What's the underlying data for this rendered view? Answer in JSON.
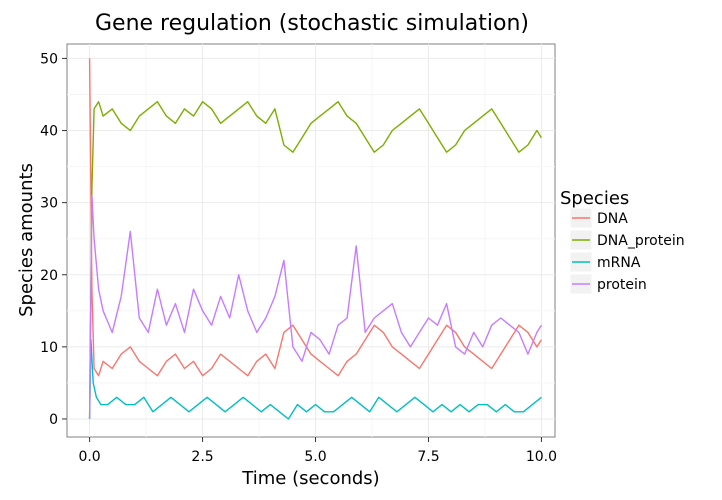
{
  "chart_data": {
    "type": "line",
    "title": "Gene regulation (stochastic simulation)",
    "xlabel": "Time (seconds)",
    "ylabel": "Species amounts",
    "xlim": [
      -0.5,
      10.3
    ],
    "ylim": [
      -2.5,
      52
    ],
    "xticks": [
      0.0,
      2.5,
      5.0,
      7.5,
      10.0
    ],
    "xtick_labels": [
      "0.0",
      "2.5",
      "5.0",
      "7.5",
      "10.0"
    ],
    "yticks": [
      0,
      10,
      20,
      30,
      40,
      50
    ],
    "ytick_labels": [
      "0",
      "10",
      "20",
      "30",
      "40",
      "50"
    ],
    "grid": true,
    "legend": {
      "title": "Species",
      "position": "right"
    },
    "series": [
      {
        "name": "DNA",
        "color": "#F8766D",
        "x": [
          0.0,
          0.05,
          0.1,
          0.2,
          0.3,
          0.5,
          0.7,
          0.9,
          1.1,
          1.3,
          1.5,
          1.7,
          1.9,
          2.1,
          2.3,
          2.5,
          2.7,
          2.9,
          3.1,
          3.3,
          3.5,
          3.7,
          3.9,
          4.1,
          4.3,
          4.5,
          4.7,
          4.9,
          5.1,
          5.3,
          5.5,
          5.7,
          5.9,
          6.1,
          6.3,
          6.5,
          6.7,
          6.9,
          7.1,
          7.3,
          7.5,
          7.7,
          7.9,
          8.1,
          8.3,
          8.5,
          8.7,
          8.9,
          9.1,
          9.3,
          9.5,
          9.7,
          9.9,
          10.0
        ],
        "y": [
          50,
          18,
          7,
          6,
          8,
          7,
          9,
          10,
          8,
          7,
          6,
          8,
          9,
          7,
          8,
          6,
          7,
          9,
          8,
          7,
          6,
          8,
          9,
          7,
          12,
          13,
          11,
          9,
          8,
          7,
          6,
          8,
          9,
          11,
          13,
          12,
          10,
          9,
          8,
          7,
          9,
          11,
          13,
          12,
          10,
          9,
          8,
          7,
          9,
          11,
          13,
          12,
          10,
          11
        ]
      },
      {
        "name": "DNA_protein",
        "color": "#7CAE00",
        "x": [
          0.0,
          0.05,
          0.1,
          0.2,
          0.3,
          0.5,
          0.7,
          0.9,
          1.1,
          1.3,
          1.5,
          1.7,
          1.9,
          2.1,
          2.3,
          2.5,
          2.7,
          2.9,
          3.1,
          3.3,
          3.5,
          3.7,
          3.9,
          4.1,
          4.3,
          4.5,
          4.7,
          4.9,
          5.1,
          5.3,
          5.5,
          5.7,
          5.9,
          6.1,
          6.3,
          6.5,
          6.7,
          6.9,
          7.1,
          7.3,
          7.5,
          7.7,
          7.9,
          8.1,
          8.3,
          8.5,
          8.7,
          8.9,
          9.1,
          9.3,
          9.5,
          9.7,
          9.9,
          10.0
        ],
        "y": [
          0,
          32,
          43,
          44,
          42,
          43,
          41,
          40,
          42,
          43,
          44,
          42,
          41,
          43,
          42,
          44,
          43,
          41,
          42,
          43,
          44,
          42,
          41,
          43,
          38,
          37,
          39,
          41,
          42,
          43,
          44,
          42,
          41,
          39,
          37,
          38,
          40,
          41,
          42,
          43,
          41,
          39,
          37,
          38,
          40,
          41,
          42,
          43,
          41,
          39,
          37,
          38,
          40,
          39
        ]
      },
      {
        "name": "mRNA",
        "color": "#00BFC4",
        "x": [
          0.0,
          0.03,
          0.08,
          0.15,
          0.25,
          0.4,
          0.6,
          0.8,
          1.0,
          1.2,
          1.4,
          1.6,
          1.8,
          2.0,
          2.2,
          2.4,
          2.6,
          2.8,
          3.0,
          3.2,
          3.4,
          3.6,
          3.8,
          4.0,
          4.2,
          4.4,
          4.6,
          4.8,
          5.0,
          5.2,
          5.4,
          5.6,
          5.8,
          6.0,
          6.2,
          6.4,
          6.6,
          6.8,
          7.0,
          7.2,
          7.4,
          7.6,
          7.8,
          8.0,
          8.2,
          8.4,
          8.6,
          8.8,
          9.0,
          9.2,
          9.4,
          9.6,
          9.8,
          10.0
        ],
        "y": [
          0,
          11,
          5,
          3,
          2,
          2,
          3,
          2,
          2,
          3,
          1,
          2,
          3,
          2,
          1,
          2,
          3,
          2,
          1,
          2,
          3,
          2,
          1,
          2,
          1,
          0,
          2,
          1,
          2,
          1,
          1,
          2,
          3,
          2,
          1,
          3,
          2,
          1,
          2,
          3,
          2,
          1,
          2,
          1,
          2,
          1,
          2,
          2,
          1,
          2,
          1,
          1,
          2,
          3
        ]
      },
      {
        "name": "protein",
        "color": "#C77CFF",
        "x": [
          0.0,
          0.05,
          0.1,
          0.2,
          0.3,
          0.5,
          0.7,
          0.9,
          1.1,
          1.3,
          1.5,
          1.7,
          1.9,
          2.1,
          2.3,
          2.5,
          2.7,
          2.9,
          3.1,
          3.3,
          3.5,
          3.7,
          3.9,
          4.1,
          4.3,
          4.5,
          4.7,
          4.9,
          5.1,
          5.3,
          5.5,
          5.7,
          5.9,
          6.1,
          6.3,
          6.5,
          6.7,
          6.9,
          7.1,
          7.3,
          7.5,
          7.7,
          7.9,
          8.1,
          8.3,
          8.5,
          8.7,
          8.9,
          9.1,
          9.3,
          9.5,
          9.7,
          9.9,
          10.0
        ],
        "y": [
          0,
          31,
          25,
          18,
          15,
          12,
          17,
          26,
          14,
          12,
          18,
          13,
          16,
          12,
          18,
          15,
          13,
          17,
          14,
          20,
          15,
          12,
          14,
          17,
          22,
          10,
          8,
          12,
          11,
          9,
          13,
          14,
          24,
          12,
          14,
          15,
          16,
          12,
          10,
          12,
          14,
          13,
          16,
          10,
          9,
          12,
          10,
          13,
          14,
          13,
          12,
          9,
          12,
          13
        ]
      }
    ]
  }
}
